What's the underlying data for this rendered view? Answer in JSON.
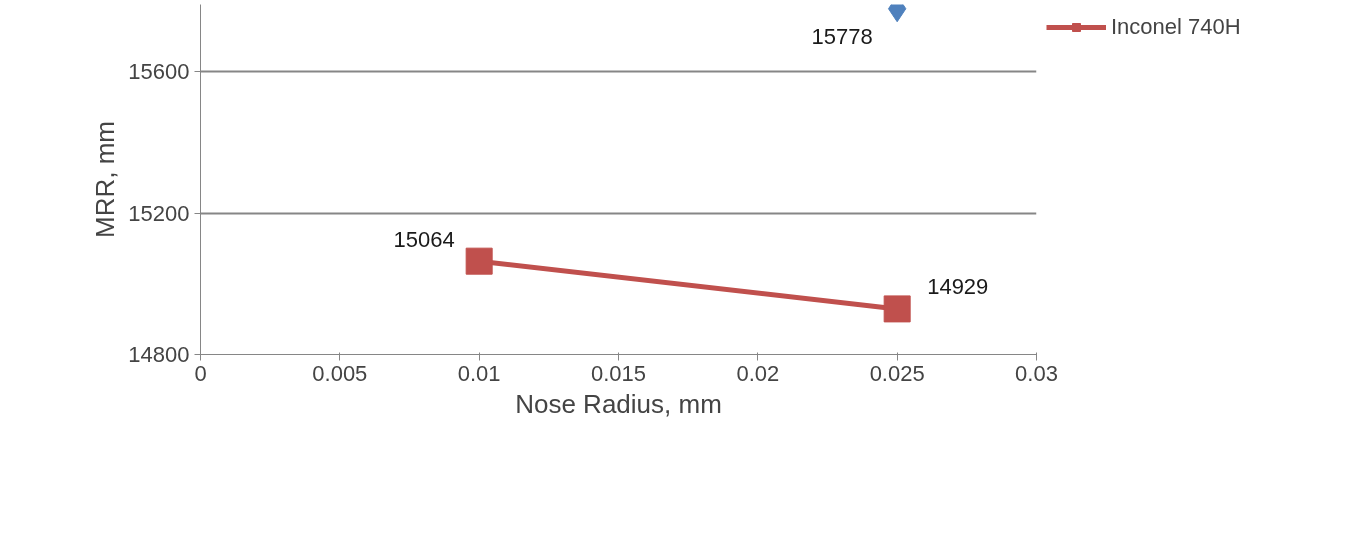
{
  "chart_data": {
    "type": "line",
    "xlabel": "Nose Radius, mm",
    "ylabel": "MRR, mm",
    "xlim": [
      0,
      0.03
    ],
    "xticks": [
      0,
      0.005,
      0.01,
      0.015,
      0.02,
      0.025,
      0.03
    ],
    "ylim": [
      14800,
      15790
    ],
    "yticks": [
      14800,
      15200,
      15600
    ],
    "x": [
      0.01,
      0.025
    ],
    "series": [
      {
        "color": "#4f81bd",
        "marker": "diamond",
        "values": [
          null,
          15778
        ]
      },
      {
        "name": "Inconel 740H",
        "color": "#c0504d",
        "marker": "square",
        "values": [
          15064,
          14929
        ]
      }
    ],
    "data_labels": true,
    "grid": "y",
    "legend": "right"
  }
}
